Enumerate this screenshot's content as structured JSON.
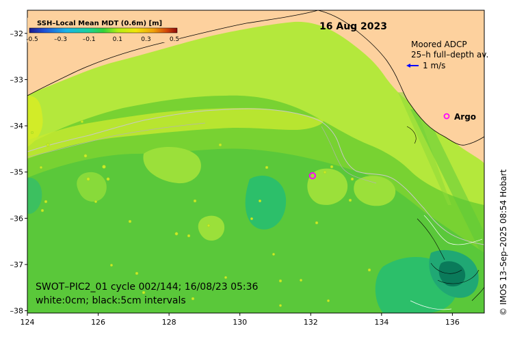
{
  "map": {
    "title": "16 Aug 2023",
    "colorbar": {
      "title": "SSH–Local Mean MDT (0.6m) [m]",
      "ticks": [
        "-0.5",
        "–0.3",
        "–0.1",
        "0.1",
        "0.3",
        "0.5"
      ],
      "colors": [
        "#1a1a8c",
        "#1f4fd6",
        "#19b4e8",
        "#19d29a",
        "#32d23c",
        "#b4ee14",
        "#f0e60a",
        "#f0a00a",
        "#d2460a",
        "#8c0a0a"
      ]
    },
    "adcp": {
      "title": "Moored ADCP",
      "subtitle": "25–h full–depth av.",
      "scale_label": "1 m/s",
      "arrow_color": "#0000ff"
    },
    "argo": {
      "label": "Argo",
      "marker_color": "#ff00ff"
    },
    "swot_line1": "SWOT–PIC2_01 cycle 002/144; 16/08/23 05:36",
    "swot_line2": "white:0cm; black:5cm intervals",
    "credit": "© IMOS 13–Sep–2025 08:54 Hobart",
    "x_ticks": [
      "124",
      "126",
      "128",
      "130",
      "132",
      "134",
      "136"
    ],
    "y_ticks": [
      "–32",
      "–33",
      "–34",
      "–35",
      "–36",
      "–37",
      "–38"
    ],
    "land_color": "#fdd19e",
    "argo_float": {
      "lon": 132.05,
      "lat": -35.08
    }
  }
}
